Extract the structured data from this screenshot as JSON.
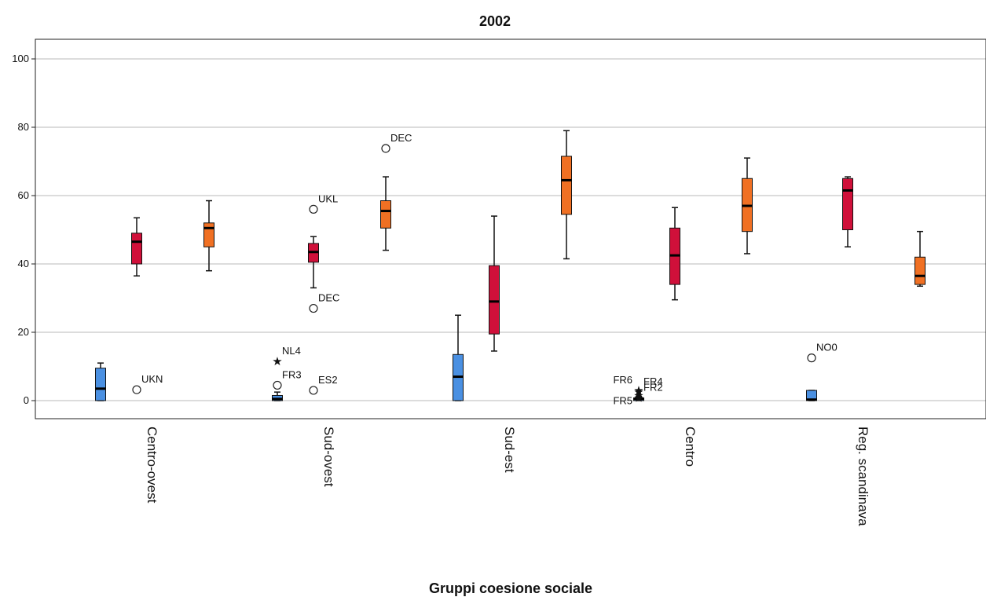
{
  "chart_data": {
    "type": "boxplot",
    "title": "2002",
    "xlabel": "Gruppi coesione sociale",
    "ylabel": "",
    "ylim": [
      -5,
      105
    ],
    "yticks": [
      "0",
      "20",
      "40",
      "60",
      "80",
      "100"
    ],
    "grid": true,
    "categories": [
      "Centro-ovest",
      "Sud-ovest",
      "Sud-est",
      "Centro",
      "Reg. scandinava"
    ],
    "series_colors": [
      "#4a90e2",
      "#d0103a",
      "#f07023"
    ],
    "boxes": [
      [
        {
          "min": 0,
          "q1": 0,
          "median": 3.5,
          "q3": 9.5,
          "max": 11
        },
        {
          "min": 36.5,
          "q1": 40,
          "median": 46.5,
          "q3": 49,
          "max": 53.5
        },
        {
          "min": 38,
          "q1": 45,
          "median": 50.5,
          "q3": 52,
          "max": 58.5
        }
      ],
      [
        {
          "min": 0,
          "q1": 0,
          "median": 0.5,
          "q3": 1.5,
          "max": 2.5
        },
        {
          "min": 33,
          "q1": 40.5,
          "median": 43.5,
          "q3": 46,
          "max": 48
        },
        {
          "min": 44,
          "q1": 50.5,
          "median": 55.5,
          "q3": 58.5,
          "max": 65.5
        }
      ],
      [
        {
          "min": 0,
          "q1": 0,
          "median": 7,
          "q3": 13.5,
          "max": 25
        },
        {
          "min": 14.5,
          "q1": 19.5,
          "median": 29,
          "q3": 39.5,
          "max": 54
        },
        {
          "min": 41.5,
          "q1": 54.5,
          "median": 64.5,
          "q3": 71.5,
          "max": 79
        }
      ],
      [
        {
          "min": 0,
          "q1": 0,
          "median": 0.5,
          "q3": 0.8,
          "max": 1.2
        },
        {
          "min": 29.5,
          "q1": 34,
          "median": 42.5,
          "q3": 50.5,
          "max": 56.5
        },
        {
          "min": 43,
          "q1": 49.5,
          "median": 57,
          "q3": 65,
          "max": 71
        }
      ],
      [
        {
          "min": 0,
          "q1": 0,
          "median": 0.3,
          "q3": 3,
          "max": 3
        },
        {
          "min": 45,
          "q1": 50,
          "median": 61.5,
          "q3": 65,
          "max": 65.5
        },
        {
          "min": 33.5,
          "q1": 34,
          "median": 36.5,
          "q3": 42,
          "max": 49.5
        }
      ]
    ],
    "outliers": [
      {
        "category": 0,
        "series": 1,
        "value": 3.2,
        "symbol": "circle",
        "label": "UKN",
        "label_side": "right"
      },
      {
        "category": 1,
        "series": 0,
        "value": 11.5,
        "symbol": "star",
        "label": "NL4",
        "label_side": "right"
      },
      {
        "category": 1,
        "series": 0,
        "value": 4.5,
        "symbol": "circle",
        "label": "FR3",
        "label_side": "right"
      },
      {
        "category": 1,
        "series": 1,
        "value": 56,
        "symbol": "circle",
        "label": "UKL",
        "label_side": "right"
      },
      {
        "category": 1,
        "series": 1,
        "value": 27,
        "symbol": "circle",
        "label": "DEC",
        "label_side": "right"
      },
      {
        "category": 1,
        "series": 2,
        "value": 73.8,
        "symbol": "circle",
        "label": "DEC",
        "label_side": "right"
      },
      {
        "category": 1,
        "series": 1,
        "value": 3,
        "symbol": "circle",
        "label": "ES2",
        "label_side": "right"
      },
      {
        "category": 3,
        "series": 0,
        "value": 3,
        "symbol": "star",
        "label": "FR6",
        "label_side": "left"
      },
      {
        "category": 3,
        "series": 0,
        "value": 2.5,
        "symbol": "star",
        "label": "FR4",
        "label_side": "right"
      },
      {
        "category": 3,
        "series": 0,
        "value": 1.5,
        "symbol": "star",
        "label": "FR5",
        "label_side": "left"
      },
      {
        "category": 3,
        "series": 0,
        "value": 0.8,
        "symbol": "star",
        "label": "FR2",
        "label_side": "right"
      },
      {
        "category": 4,
        "series": 0,
        "value": 12.5,
        "symbol": "circle",
        "label": "NO0",
        "label_side": "right"
      }
    ]
  }
}
